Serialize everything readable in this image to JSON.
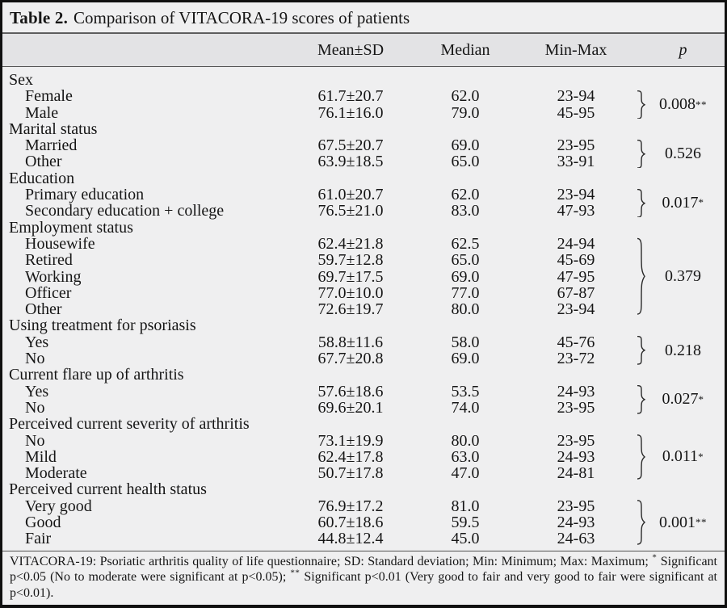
{
  "title": {
    "prefix": "Table 2.",
    "text": "Comparison of VITACORA-19 scores of patients"
  },
  "columns": {
    "mean": "Mean±SD",
    "median": "Median",
    "minmax": "Min-Max",
    "p": "p"
  },
  "sections": [
    {
      "label": "Sex",
      "rows": [
        {
          "label": "Female",
          "mean": "61.7±20.7",
          "median": "62.0",
          "minmax": "23-94"
        },
        {
          "label": "Male",
          "mean": "76.1±16.0",
          "median": "79.0",
          "minmax": "45-95"
        }
      ],
      "p": {
        "value": "0.008",
        "sup": "**"
      }
    },
    {
      "label": "Marital status",
      "rows": [
        {
          "label": "Married",
          "mean": "67.5±20.7",
          "median": "69.0",
          "minmax": "23-95"
        },
        {
          "label": "Other",
          "mean": "63.9±18.5",
          "median": "65.0",
          "minmax": "33-91"
        }
      ],
      "p": {
        "value": "0.526",
        "sup": ""
      }
    },
    {
      "label": "Education",
      "rows": [
        {
          "label": "Primary education",
          "mean": "61.0±20.7",
          "median": "62.0",
          "minmax": "23-94"
        },
        {
          "label": "Secondary education + college",
          "mean": "76.5±21.0",
          "median": "83.0",
          "minmax": "47-93"
        }
      ],
      "p": {
        "value": "0.017",
        "sup": "*"
      }
    },
    {
      "label": "Employment status",
      "rows": [
        {
          "label": "Housewife",
          "mean": "62.4±21.8",
          "median": "62.5",
          "minmax": "24-94"
        },
        {
          "label": "Retired",
          "mean": "59.7±12.8",
          "median": "65.0",
          "minmax": "45-69"
        },
        {
          "label": "Working",
          "mean": "69.7±17.5",
          "median": "69.0",
          "minmax": "47-95"
        },
        {
          "label": "Officer",
          "mean": "77.0±10.0",
          "median": "77.0",
          "minmax": "67-87"
        },
        {
          "label": "Other",
          "mean": "72.6±19.7",
          "median": "80.0",
          "minmax": "23-94"
        }
      ],
      "p": {
        "value": "0.379",
        "sup": ""
      }
    },
    {
      "label": "Using treatment for psoriasis",
      "rows": [
        {
          "label": "Yes",
          "mean": "58.8±11.6",
          "median": "58.0",
          "minmax": "45-76"
        },
        {
          "label": "No",
          "mean": "67.7±20.8",
          "median": "69.0",
          "minmax": "23-72"
        }
      ],
      "p": {
        "value": "0.218",
        "sup": ""
      }
    },
    {
      "label": "Current flare up of arthritis",
      "rows": [
        {
          "label": "Yes",
          "mean": "57.6±18.6",
          "median": "53.5",
          "minmax": "24-93"
        },
        {
          "label": "No",
          "mean": "69.6±20.1",
          "median": "74.0",
          "minmax": "23-95"
        }
      ],
      "p": {
        "value": "0.027",
        "sup": "*"
      }
    },
    {
      "label": "Perceived current severity of arthritis",
      "rows": [
        {
          "label": "No",
          "mean": "73.1±19.9",
          "median": "80.0",
          "minmax": "23-95"
        },
        {
          "label": "Mild",
          "mean": "62.4±17.8",
          "median": "63.0",
          "minmax": "24-93"
        },
        {
          "label": "Moderate",
          "mean": "50.7±17.8",
          "median": "47.0",
          "minmax": "24-81"
        }
      ],
      "p": {
        "value": "0.011",
        "sup": "*"
      }
    },
    {
      "label": "Perceived current health status",
      "rows": [
        {
          "label": "Very good",
          "mean": "76.9±17.2",
          "median": "81.0",
          "minmax": "23-95"
        },
        {
          "label": "Good",
          "mean": "60.7±18.6",
          "median": "59.5",
          "minmax": "24-93"
        },
        {
          "label": "Fair",
          "mean": "44.8±12.4",
          "median": "45.0",
          "minmax": "24-63"
        }
      ],
      "p": {
        "value": "0.001",
        "sup": "**"
      }
    }
  ],
  "footnote": {
    "segments": [
      {
        "text": "VITACORA-19: Psoriatic arthritis quality of life questionnaire; SD: Standard deviation; Min: Minimum; Max: Maximum; "
      },
      {
        "sup": "*"
      },
      {
        "text": " Significant p<0.05 (No to moderate were significant at p<0.05); "
      },
      {
        "sup": "**"
      },
      {
        "text": " Significant p<0.01 (Very good to fair and very good to fair were significant at p<0.01)."
      }
    ]
  },
  "colors": {
    "card_background": "#efeff0",
    "header_band": "#e3e3e5",
    "outer_border": "#101010",
    "rule": "#515151",
    "text": "#161616"
  }
}
